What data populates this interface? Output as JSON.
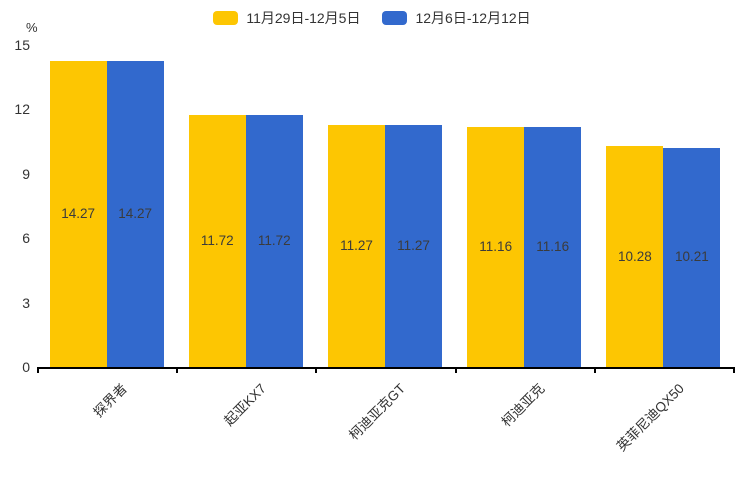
{
  "chart_data": {
    "type": "bar",
    "title": "",
    "categories": [
      "探界者",
      "起亚KX7",
      "柯迪亚克GT",
      "柯迪亚克",
      "英菲尼迪QX50"
    ],
    "series": [
      {
        "name": "11月29日-12月5日",
        "color": "#FDC602",
        "values": [
          14.27,
          11.72,
          11.27,
          11.16,
          10.28
        ]
      },
      {
        "name": "12月6日-12月12日",
        "color": "#3269CD",
        "values": [
          14.27,
          11.72,
          11.27,
          11.16,
          10.21
        ]
      }
    ],
    "xlabel": "",
    "ylabel": "%",
    "ylim": [
      0,
      15
    ],
    "yticks": [
      0,
      3,
      6,
      9,
      12,
      15
    ],
    "grid": false,
    "legend_position": "top",
    "value_label_position": "inside-center",
    "category_label_rotation_deg": 45,
    "axis_color": "#000000",
    "text_color": "#333333",
    "background_color": "#ffffff"
  }
}
